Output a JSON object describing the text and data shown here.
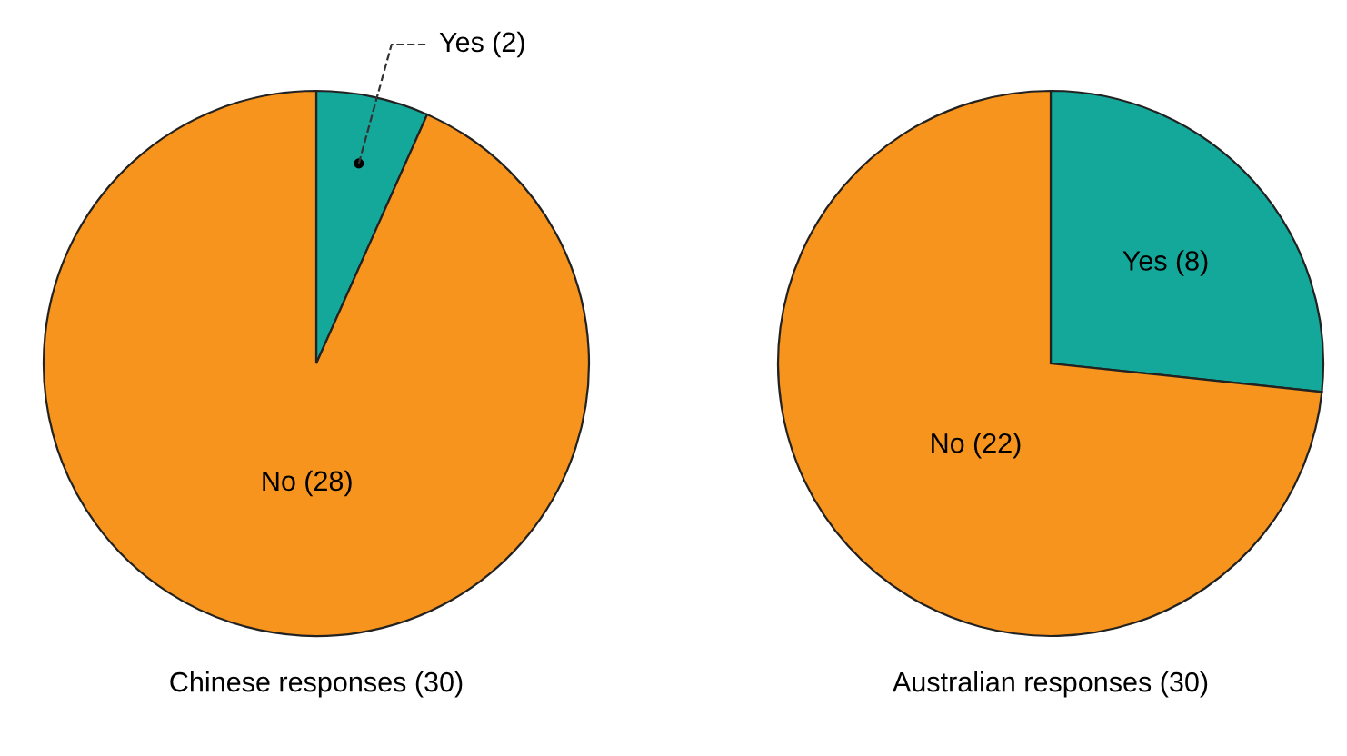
{
  "chart_data": [
    {
      "type": "pie",
      "title": "Chinese responses (30)",
      "categories": [
        "Yes",
        "No"
      ],
      "values": [
        2,
        28
      ],
      "colors": [
        "#14a89a",
        "#f7941d"
      ],
      "value_labels": [
        "(2)",
        "(28)"
      ]
    },
    {
      "type": "pie",
      "title": "Australian responses (30)",
      "categories": [
        "Yes",
        "No"
      ],
      "values": [
        8,
        22
      ],
      "colors": [
        "#14a89a",
        "#f7941d"
      ],
      "value_labels": [
        "(8)",
        "(22)"
      ]
    }
  ]
}
